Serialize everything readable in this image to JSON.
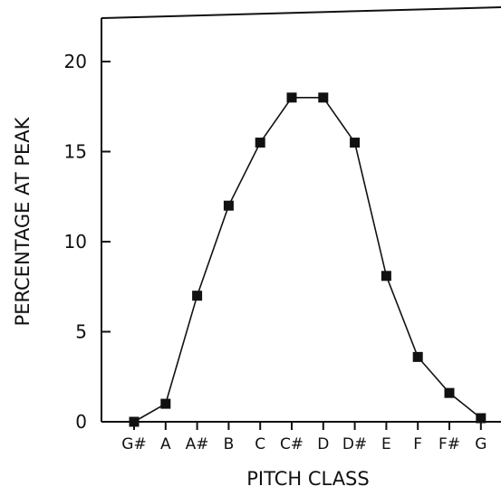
{
  "chart_data": {
    "type": "line",
    "title": "",
    "xlabel": "PITCH CLASS",
    "ylabel": "PERCENTAGE AT PEAK",
    "categories": [
      "G#",
      "A",
      "A#",
      "B",
      "C",
      "C#",
      "D",
      "D#",
      "E",
      "F",
      "F#",
      "G"
    ],
    "series": [
      {
        "values": [
          0.0,
          1.0,
          7.0,
          12.0,
          15.5,
          18.0,
          18.0,
          15.5,
          8.1,
          3.6,
          1.6,
          0.2
        ]
      }
    ],
    "ylim": [
      0,
      22
    ],
    "yticks": [
      "0",
      "5",
      "10",
      "15",
      "20"
    ],
    "grid": false,
    "legend": "none",
    "colors": {
      "line": "#111111",
      "marker": "#111111"
    }
  }
}
